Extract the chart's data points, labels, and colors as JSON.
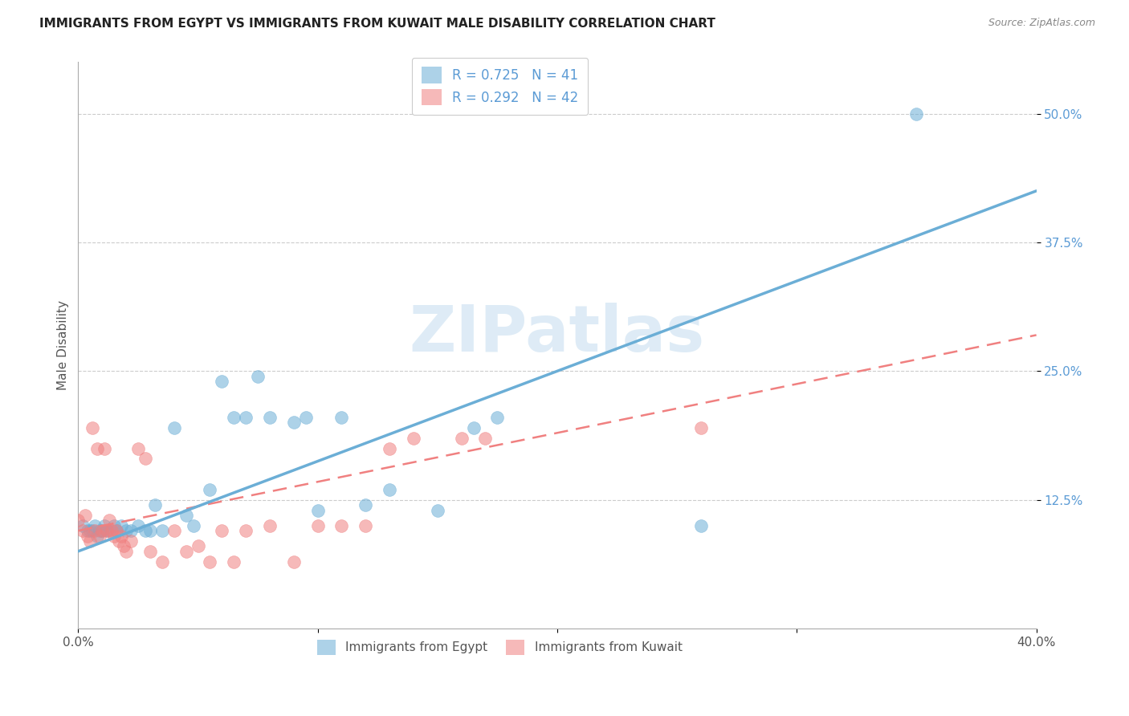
{
  "title": "IMMIGRANTS FROM EGYPT VS IMMIGRANTS FROM KUWAIT MALE DISABILITY CORRELATION CHART",
  "source": "Source: ZipAtlas.com",
  "ylabel": "Male Disability",
  "xlim": [
    0.0,
    0.4
  ],
  "ylim": [
    0.0,
    0.55
  ],
  "xticks": [
    0.0,
    0.1,
    0.2,
    0.3,
    0.4
  ],
  "xticklabels": [
    "0.0%",
    "",
    "",
    "",
    "40.0%"
  ],
  "yticks": [
    0.125,
    0.25,
    0.375,
    0.5
  ],
  "yticklabels": [
    "12.5%",
    "25.0%",
    "37.5%",
    "50.0%"
  ],
  "egypt_color": "#6baed6",
  "kuwait_color": "#f08080",
  "egypt_R": 0.725,
  "egypt_N": 41,
  "kuwait_R": 0.292,
  "kuwait_N": 42,
  "watermark": "ZIPatlas",
  "egypt_line_x": [
    0.0,
    0.4
  ],
  "egypt_line_y": [
    0.075,
    0.425
  ],
  "kuwait_line_x": [
    0.0,
    0.4
  ],
  "kuwait_line_y": [
    0.095,
    0.285
  ],
  "egypt_x": [
    0.002,
    0.004,
    0.005,
    0.006,
    0.007,
    0.008,
    0.009,
    0.01,
    0.011,
    0.012,
    0.013,
    0.015,
    0.016,
    0.018,
    0.02,
    0.022,
    0.025,
    0.028,
    0.03,
    0.032,
    0.035,
    0.04,
    0.045,
    0.048,
    0.055,
    0.06,
    0.065,
    0.07,
    0.075,
    0.08,
    0.09,
    0.095,
    0.1,
    0.11,
    0.12,
    0.13,
    0.15,
    0.165,
    0.175,
    0.26,
    0.35
  ],
  "egypt_y": [
    0.1,
    0.095,
    0.095,
    0.095,
    0.1,
    0.09,
    0.095,
    0.095,
    0.1,
    0.095,
    0.095,
    0.1,
    0.095,
    0.1,
    0.095,
    0.095,
    0.1,
    0.095,
    0.095,
    0.12,
    0.095,
    0.195,
    0.11,
    0.1,
    0.135,
    0.24,
    0.205,
    0.205,
    0.245,
    0.205,
    0.2,
    0.205,
    0.115,
    0.205,
    0.12,
    0.135,
    0.115,
    0.195,
    0.205,
    0.1,
    0.5
  ],
  "kuwait_x": [
    0.0,
    0.002,
    0.003,
    0.004,
    0.005,
    0.006,
    0.007,
    0.008,
    0.009,
    0.01,
    0.011,
    0.012,
    0.013,
    0.014,
    0.015,
    0.016,
    0.017,
    0.018,
    0.019,
    0.02,
    0.022,
    0.025,
    0.028,
    0.03,
    0.035,
    0.04,
    0.045,
    0.05,
    0.055,
    0.06,
    0.065,
    0.07,
    0.08,
    0.09,
    0.1,
    0.11,
    0.12,
    0.13,
    0.14,
    0.16,
    0.17,
    0.26
  ],
  "kuwait_y": [
    0.105,
    0.095,
    0.11,
    0.09,
    0.085,
    0.195,
    0.095,
    0.175,
    0.09,
    0.095,
    0.175,
    0.095,
    0.105,
    0.095,
    0.09,
    0.095,
    0.085,
    0.09,
    0.08,
    0.075,
    0.085,
    0.175,
    0.165,
    0.075,
    0.065,
    0.095,
    0.075,
    0.08,
    0.065,
    0.095,
    0.065,
    0.095,
    0.1,
    0.065,
    0.1,
    0.1,
    0.1,
    0.175,
    0.185,
    0.185,
    0.185,
    0.195
  ]
}
